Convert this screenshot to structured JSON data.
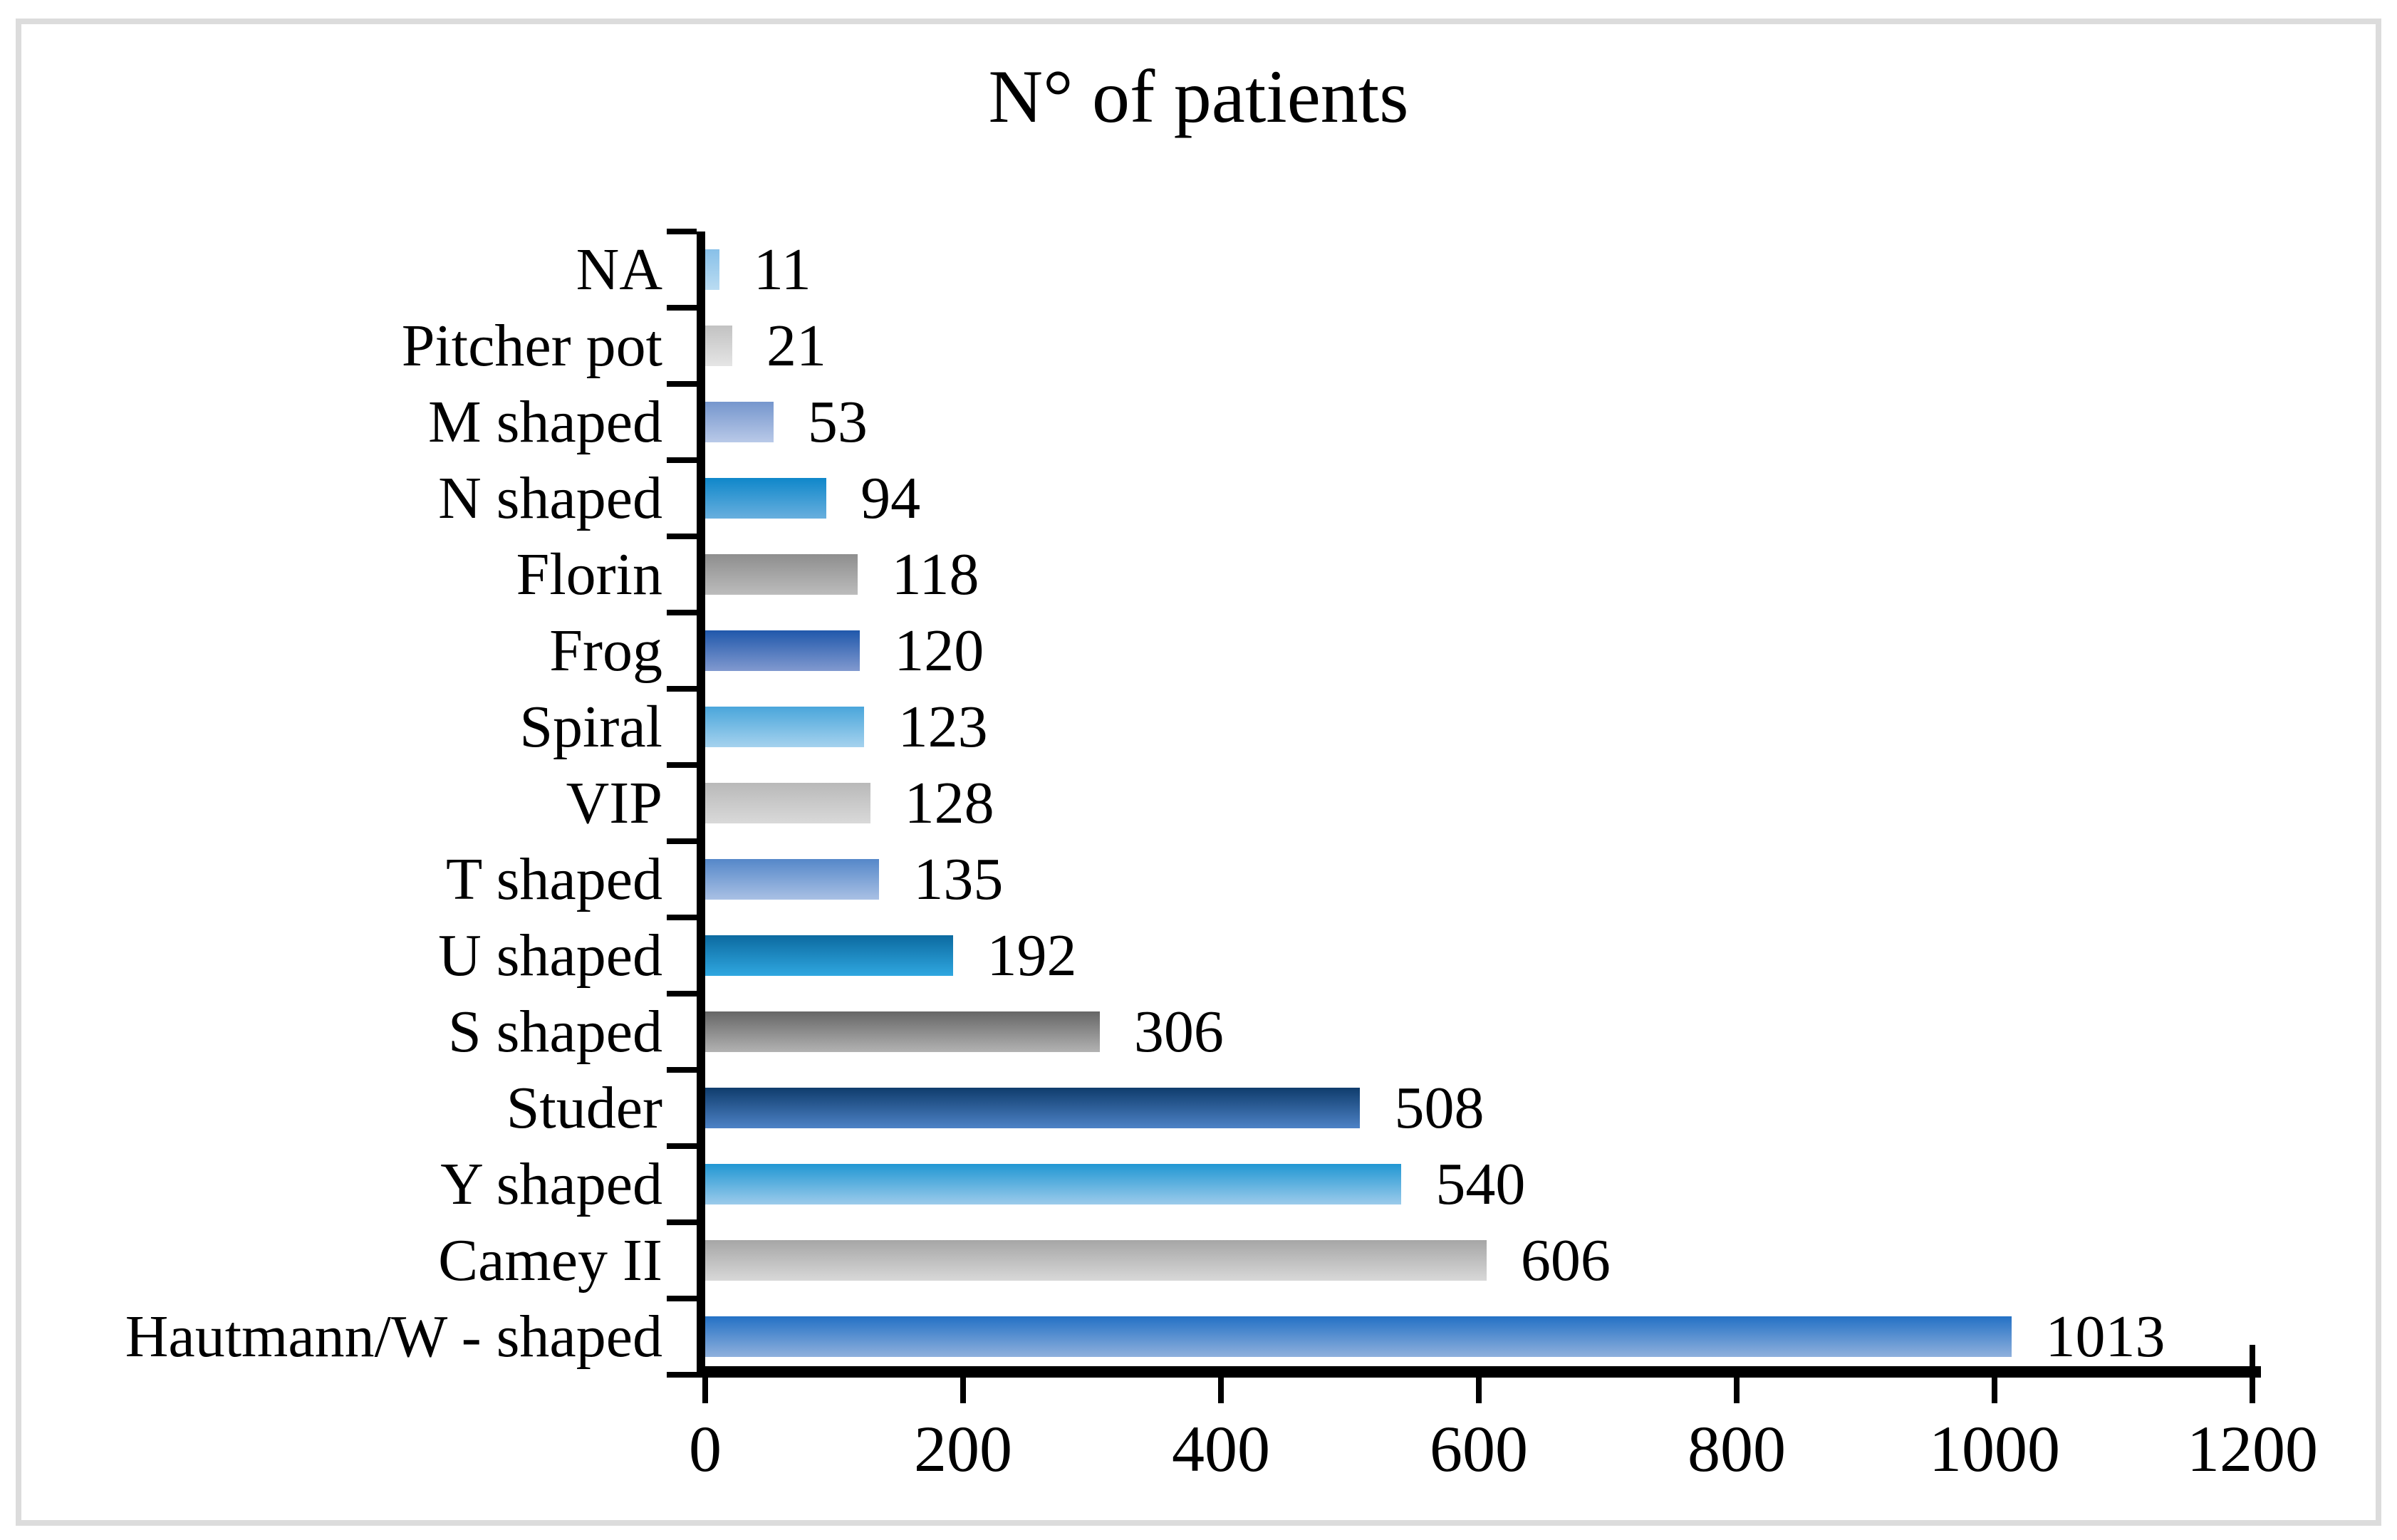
{
  "chart_data": {
    "type": "bar",
    "orientation": "horizontal",
    "title": "N° of patients",
    "categories": [
      "NA",
      "Pitcher pot",
      "M shaped",
      "N shaped",
      "Florin",
      "Frog",
      "Spiral",
      "VIP",
      "T shaped",
      "U shaped",
      "S shaped",
      "Studer",
      "Y shaped",
      "Camey II",
      "Hautmann/W - shaped"
    ],
    "values": [
      11,
      21,
      53,
      94,
      118,
      120,
      123,
      128,
      135,
      192,
      306,
      508,
      540,
      606,
      1013
    ],
    "data_labels": [
      "11",
      "21",
      "53",
      "94",
      "118",
      "120",
      "123",
      "128",
      "135",
      "192",
      "306",
      "508",
      "540",
      "606",
      "1013"
    ],
    "xlabel": "",
    "ylabel": "",
    "xlim": [
      0,
      1200
    ],
    "x_ticks": [
      "0",
      "200",
      "400",
      "600",
      "800",
      "1000",
      "1200"
    ],
    "grid": false,
    "legend": false,
    "axis_color": "#000000",
    "page_border_color": "#dcdcdc",
    "background": "#ffffff",
    "bar_colors": [
      {
        "top": "#88c0e8",
        "bottom": "#badcf2"
      },
      {
        "top": "#c2c2c2",
        "bottom": "#e5e5e5"
      },
      {
        "top": "#7596cd",
        "bottom": "#b9c9e8"
      },
      {
        "top": "#0f87ca",
        "bottom": "#68afde"
      },
      {
        "top": "#8e8e8e",
        "bottom": "#bcbcbc"
      },
      {
        "top": "#2058ab",
        "bottom": "#8199cf"
      },
      {
        "top": "#4aa6db",
        "bottom": "#a5d2ee"
      },
      {
        "top": "#b9b9b9",
        "bottom": "#d9d9d9"
      },
      {
        "top": "#5587c9",
        "bottom": "#a9c0e4"
      },
      {
        "top": "#0c6aa0",
        "bottom": "#2fa7e0"
      },
      {
        "top": "#666666",
        "bottom": "#b2b2b2"
      },
      {
        "top": "#0f3c6c",
        "bottom": "#4d82c6"
      },
      {
        "top": "#2197d3",
        "bottom": "#9ccbeb"
      },
      {
        "top": "#a6a6a6",
        "bottom": "#d8d8d8"
      },
      {
        "top": "#2471c5",
        "bottom": "#8fb0dc"
      }
    ]
  }
}
